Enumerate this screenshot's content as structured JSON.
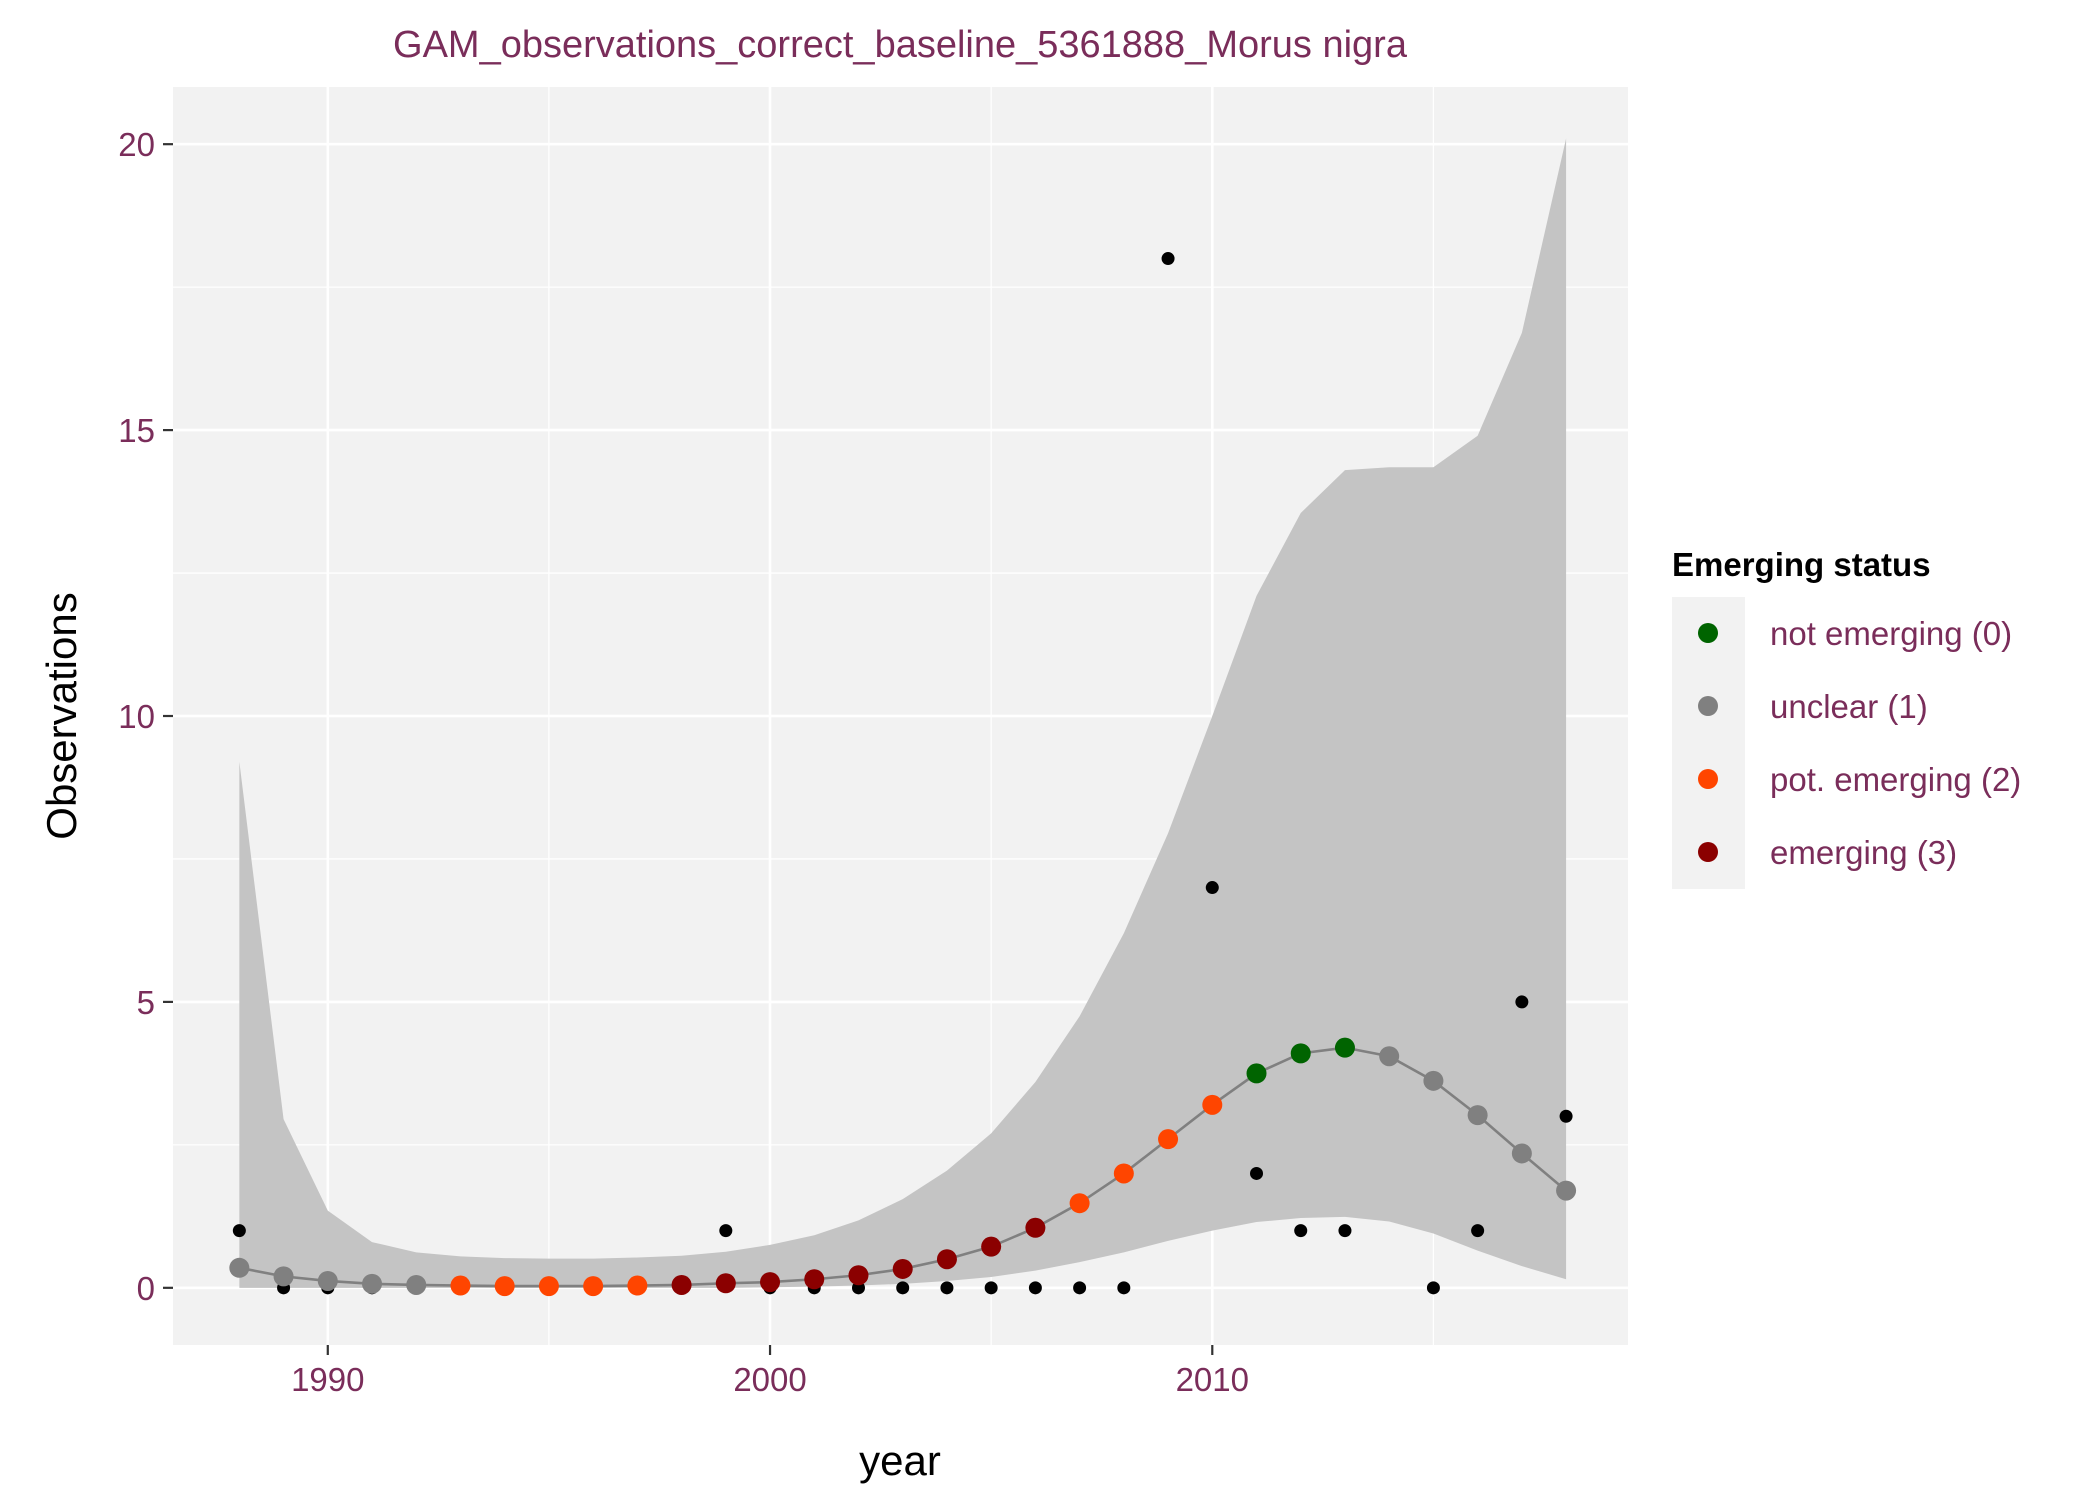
{
  "chart_data": {
    "type": "scatter",
    "title": "GAM_observations_correct_baseline_5361888_Morus nigra",
    "xlabel": "year",
    "ylabel": "Observations",
    "xlim": [
      1986.5,
      2019.4
    ],
    "ylim": [
      -1,
      21
    ],
    "x_ticks": [
      1990,
      2000,
      2010
    ],
    "y_ticks": [
      0,
      5,
      10,
      15,
      20
    ],
    "grid": true,
    "legend": {
      "title": "Emerging status",
      "position": "right",
      "entries": [
        {
          "label": "not emerging (0)",
          "status": 0,
          "color": "#006400"
        },
        {
          "label": "unclear (1)",
          "status": 1,
          "color": "#808080"
        },
        {
          "label": "pot. emerging (2)",
          "status": 2,
          "color": "#ff4500"
        },
        {
          "label": "emerging (3)",
          "status": 3,
          "color": "#8b0000"
        }
      ]
    },
    "colors": {
      "panel_background": "#f2f2f2",
      "grid": "#ffffff",
      "ribbon": "#c4c4c4",
      "fit_line": "#808080",
      "observed_points": "#000000"
    },
    "observations": {
      "name": "observed",
      "points": [
        [
          1988,
          1
        ],
        [
          1989,
          0
        ],
        [
          1990,
          0
        ],
        [
          1991,
          0
        ],
        [
          1999,
          1
        ],
        [
          2000,
          0
        ],
        [
          2001,
          0
        ],
        [
          2002,
          0
        ],
        [
          2003,
          0
        ],
        [
          2004,
          0
        ],
        [
          2005,
          0
        ],
        [
          2006,
          0
        ],
        [
          2007,
          0
        ],
        [
          2008,
          0
        ],
        [
          2009,
          18
        ],
        [
          2010,
          7
        ],
        [
          2011,
          2
        ],
        [
          2012,
          1
        ],
        [
          2013,
          1
        ],
        [
          2015,
          0
        ],
        [
          2016,
          1
        ],
        [
          2017,
          5
        ],
        [
          2018,
          3
        ]
      ]
    },
    "fit": {
      "points": [
        {
          "x": 1988,
          "y": 0.35,
          "lower": 0.0,
          "upper": 9.2,
          "status": 1
        },
        {
          "x": 1989,
          "y": 0.2,
          "lower": 0.0,
          "upper": 2.95,
          "status": 1
        },
        {
          "x": 1990,
          "y": 0.12,
          "lower": 0.0,
          "upper": 1.35,
          "status": 1
        },
        {
          "x": 1991,
          "y": 0.07,
          "lower": 0.0,
          "upper": 0.8,
          "status": 1
        },
        {
          "x": 1992,
          "y": 0.05,
          "lower": 0.0,
          "upper": 0.62,
          "status": 1
        },
        {
          "x": 1993,
          "y": 0.04,
          "lower": 0.0,
          "upper": 0.55,
          "status": 2
        },
        {
          "x": 1994,
          "y": 0.03,
          "lower": 0.0,
          "upper": 0.52,
          "status": 2
        },
        {
          "x": 1995,
          "y": 0.03,
          "lower": 0.0,
          "upper": 0.51,
          "status": 2
        },
        {
          "x": 1996,
          "y": 0.03,
          "lower": 0.0,
          "upper": 0.51,
          "status": 2
        },
        {
          "x": 1997,
          "y": 0.04,
          "lower": 0.0,
          "upper": 0.53,
          "status": 2
        },
        {
          "x": 1998,
          "y": 0.05,
          "lower": 0.0,
          "upper": 0.56,
          "status": 3
        },
        {
          "x": 1999,
          "y": 0.08,
          "lower": 0.0,
          "upper": 0.63,
          "status": 3
        },
        {
          "x": 2000,
          "y": 0.1,
          "lower": 0.01,
          "upper": 0.75,
          "status": 3
        },
        {
          "x": 2001,
          "y": 0.15,
          "lower": 0.02,
          "upper": 0.92,
          "status": 3
        },
        {
          "x": 2002,
          "y": 0.22,
          "lower": 0.04,
          "upper": 1.18,
          "status": 3
        },
        {
          "x": 2003,
          "y": 0.33,
          "lower": 0.07,
          "upper": 1.55,
          "status": 3
        },
        {
          "x": 2004,
          "y": 0.5,
          "lower": 0.12,
          "upper": 2.05,
          "status": 3
        },
        {
          "x": 2005,
          "y": 0.72,
          "lower": 0.19,
          "upper": 2.7,
          "status": 3
        },
        {
          "x": 2006,
          "y": 1.05,
          "lower": 0.3,
          "upper": 3.6,
          "status": 3
        },
        {
          "x": 2007,
          "y": 1.48,
          "lower": 0.45,
          "upper": 4.75,
          "status": 2
        },
        {
          "x": 2008,
          "y": 2.0,
          "lower": 0.62,
          "upper": 6.2,
          "status": 2
        },
        {
          "x": 2009,
          "y": 2.6,
          "lower": 0.82,
          "upper": 7.95,
          "status": 2
        },
        {
          "x": 2010,
          "y": 3.2,
          "lower": 1.0,
          "upper": 10.0,
          "status": 2
        },
        {
          "x": 2011,
          "y": 3.75,
          "lower": 1.15,
          "upper": 12.1,
          "status": 0
        },
        {
          "x": 2012,
          "y": 4.1,
          "lower": 1.22,
          "upper": 13.55,
          "status": 0
        },
        {
          "x": 2013,
          "y": 4.2,
          "lower": 1.24,
          "upper": 14.3,
          "status": 0
        },
        {
          "x": 2014,
          "y": 4.05,
          "lower": 1.16,
          "upper": 14.35,
          "status": 1
        },
        {
          "x": 2015,
          "y": 3.62,
          "lower": 0.95,
          "upper": 14.35,
          "status": 1
        },
        {
          "x": 2016,
          "y": 3.02,
          "lower": 0.65,
          "upper": 14.9,
          "status": 1
        },
        {
          "x": 2017,
          "y": 2.35,
          "lower": 0.38,
          "upper": 16.7,
          "status": 1
        },
        {
          "x": 2018,
          "y": 1.7,
          "lower": 0.15,
          "upper": 20.1,
          "status": 1
        }
      ]
    }
  }
}
